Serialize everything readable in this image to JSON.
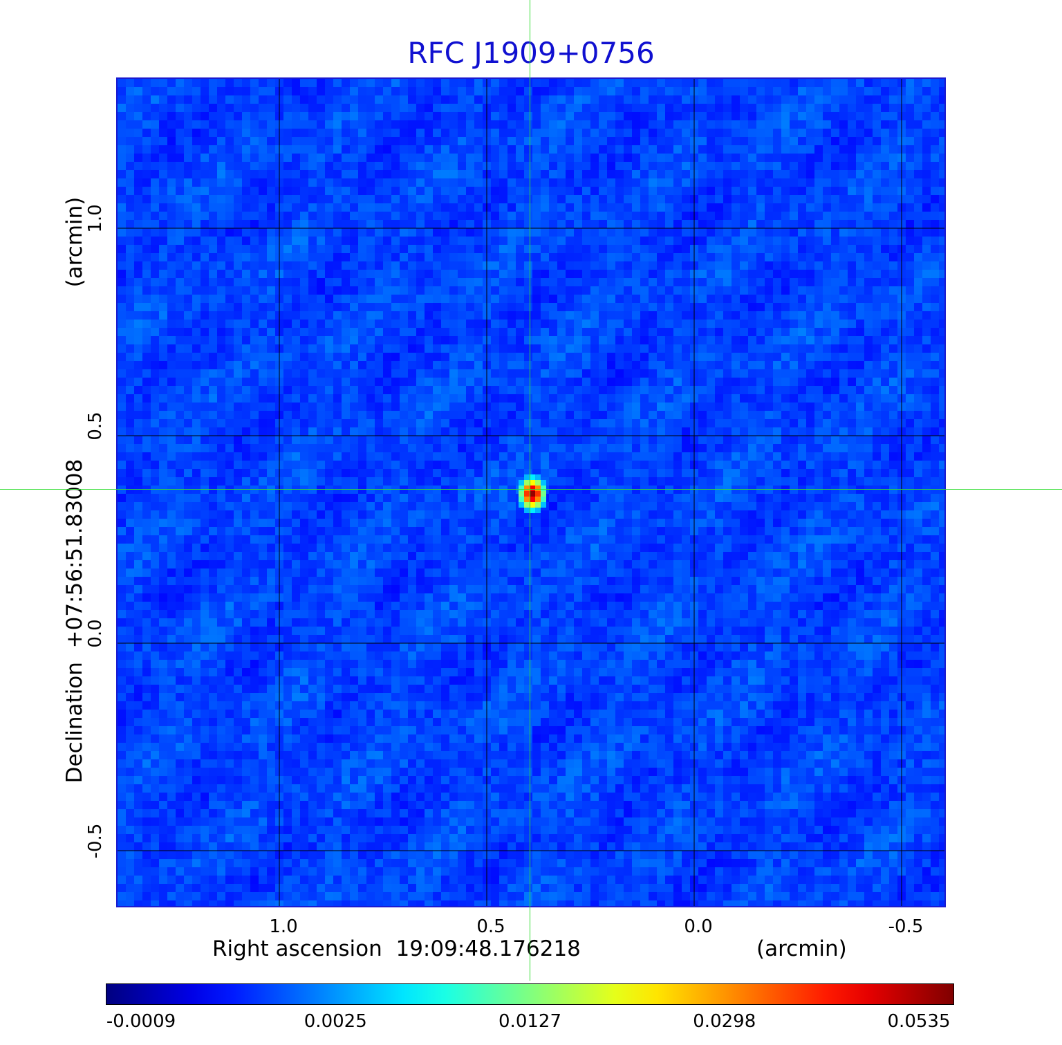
{
  "chart_data": {
    "type": "heatmap",
    "title": "RFC J1909+0756",
    "xlabel": "Right ascension  19:09:48.176218",
    "xlabel_unit": "(arcmin)",
    "ylabel": "Declination  +07:56:51.83008",
    "ylabel_unit": "(arcmin)",
    "x_ticks": [
      "1.0",
      "0.5",
      "0.0",
      "-0.5"
    ],
    "x_tick_values": [
      1.0,
      0.5,
      0.0,
      -0.5
    ],
    "y_ticks": [
      "1.0",
      "0.5",
      "0.0",
      "-0.5"
    ],
    "y_tick_values": [
      1.0,
      0.5,
      0.0,
      -0.5
    ],
    "xlim": [
      1.39,
      -0.61
    ],
    "ylim": [
      -0.64,
      1.36
    ],
    "grid": true,
    "source_peak": {
      "x": 0.39,
      "y": 0.36,
      "value": 0.0535
    },
    "colorbar": {
      "colormap": "jet",
      "tick_labels": [
        "-0.0009",
        "0.0025",
        "0.0127",
        "0.0298",
        "0.0535"
      ],
      "tick_values": [
        -0.0009,
        0.0025,
        0.0127,
        0.0298,
        0.0535
      ]
    },
    "colors": {
      "background_map": "#1a48f0",
      "crosshair": "#33dd33",
      "title": "#1010d0",
      "frame": "#1a1ad0"
    }
  }
}
